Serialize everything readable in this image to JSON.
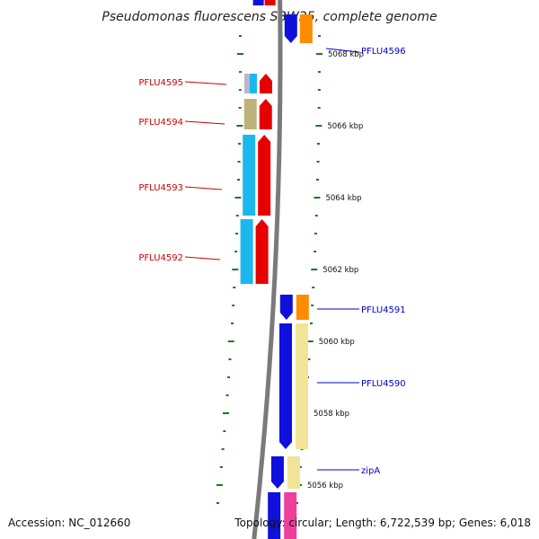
{
  "title": "Pseudomonas fluorescens SBW25, complete genome",
  "accession": "Accession: NC_012660",
  "topology": "Topology: circular; Length: 6,722,539 bp; Genes: 6,018",
  "colors": {
    "backbone": "#7a7a7a",
    "tick": "#1a7a1a",
    "label_left": "#cc0000",
    "label_right": "#0000cc",
    "red": "#e60000",
    "cyan": "#1ab8ee",
    "silver": "#b8b8c8",
    "olive": "#bdb27a",
    "blue": "#1010dd",
    "orange": "#ff8c00",
    "cream": "#f2e496",
    "pink": "#ee3f9a"
  },
  "scale": {
    "unit": "kbp",
    "labels": [
      {
        "kbp": 5068,
        "text": "5068 kbp"
      },
      {
        "kbp": 5066,
        "text": "5066 kbp"
      },
      {
        "kbp": 5064,
        "text": "5064 kbp"
      },
      {
        "kbp": 5062,
        "text": "5062 kbp"
      },
      {
        "kbp": 5060,
        "text": "5060 kbp"
      },
      {
        "kbp": 5058,
        "text": "5058 kbp"
      },
      {
        "kbp": 5056,
        "text": "5056 kbp"
      }
    ]
  },
  "genes_left": [
    {
      "name": "PFLU4595",
      "start_kbp": 5066.9,
      "end_kbp": 5067.7
    },
    {
      "name": "PFLU4594",
      "start_kbp": 5065.9,
      "end_kbp": 5066.8
    },
    {
      "name": "PFLU4593",
      "start_kbp": 5063.5,
      "end_kbp": 5065.8
    },
    {
      "name": "PFLU4592",
      "start_kbp": 5061.6,
      "end_kbp": 5063.4
    }
  ],
  "genes_right": [
    {
      "name": "PFLU4596",
      "start_kbp": 5068.3,
      "end_kbp": 5069.1
    },
    {
      "name": "PFLU4591",
      "start_kbp": 5060.6,
      "end_kbp": 5061.3
    },
    {
      "name": "PFLU4590",
      "start_kbp": 5057.0,
      "end_kbp": 5060.5
    },
    {
      "name": "zipA",
      "start_kbp": 5055.9,
      "end_kbp": 5056.8
    },
    {
      "name": "",
      "start_kbp": 5054.4,
      "end_kbp": 5055.8
    }
  ]
}
